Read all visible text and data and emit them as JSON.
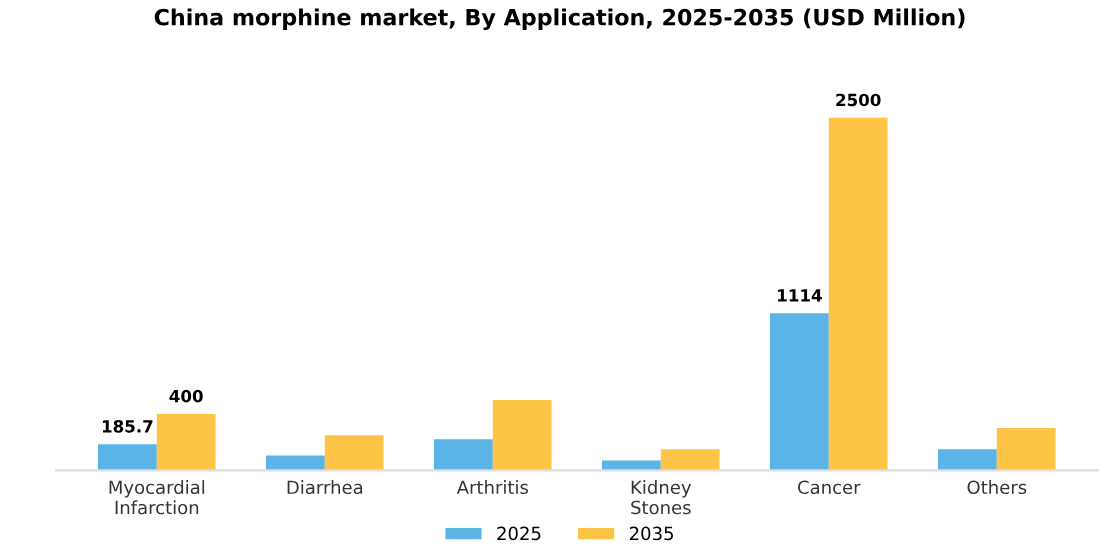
{
  "chart_data": {
    "type": "bar",
    "title": "China morphine market, By Application, 2025-2035 (USD Million)",
    "categories": [
      "Myocardial\nInfarction",
      "Diarrhea",
      "Arthritis",
      "Kidney\nStones",
      "Cancer",
      "Others"
    ],
    "series": [
      {
        "name": "2025",
        "color": "#5ab4e5",
        "values": [
          185.7,
          106,
          220,
          70,
          1114,
          150
        ],
        "value_labels": [
          "185.7",
          null,
          null,
          null,
          "1114",
          null
        ]
      },
      {
        "name": "2035",
        "color": "#fdc445",
        "values": [
          400,
          250,
          500,
          150,
          2500,
          300
        ],
        "value_labels": [
          "400",
          null,
          null,
          null,
          "2500",
          null
        ]
      }
    ],
    "legend": "bottom",
    "grid": false
  }
}
